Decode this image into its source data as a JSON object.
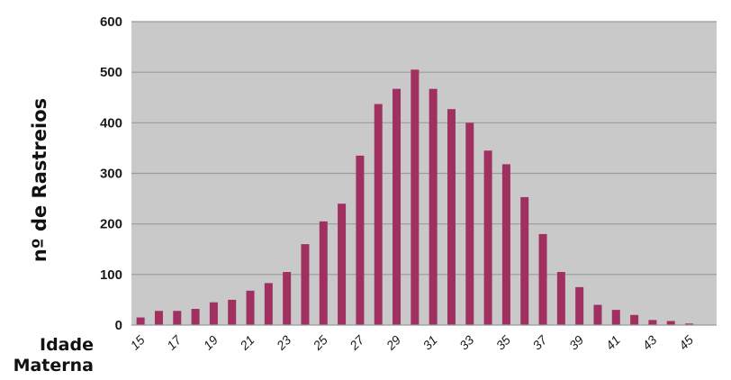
{
  "colors": {
    "plot_background": "#c9c9c9",
    "gridline": "#9b9b9b",
    "bar": "#a0305f",
    "axis_text": "#1a1a1a"
  },
  "chart_data": {
    "type": "bar",
    "title": "",
    "ylabel": "nº de Rastreios",
    "xlabel": [
      "Idade",
      "Materna"
    ],
    "ylim": [
      0,
      600
    ],
    "y_ticks": [
      0,
      100,
      200,
      300,
      400,
      500,
      600
    ],
    "grid": true,
    "categories": [
      15,
      16,
      17,
      18,
      19,
      20,
      21,
      22,
      23,
      24,
      25,
      26,
      27,
      28,
      29,
      30,
      31,
      32,
      33,
      34,
      35,
      36,
      37,
      38,
      39,
      40,
      41,
      42,
      43,
      44,
      45,
      46
    ],
    "x_tick_labels": [
      "15",
      "17",
      "19",
      "21",
      "23",
      "25",
      "27",
      "29",
      "31",
      "33",
      "35",
      "37",
      "39",
      "41",
      "43",
      "45"
    ],
    "values": [
      15,
      28,
      28,
      32,
      45,
      50,
      68,
      83,
      105,
      160,
      205,
      240,
      335,
      437,
      467,
      505,
      467,
      427,
      400,
      345,
      318,
      253,
      180,
      105,
      75,
      40,
      30,
      20,
      10,
      8,
      3,
      0
    ]
  }
}
